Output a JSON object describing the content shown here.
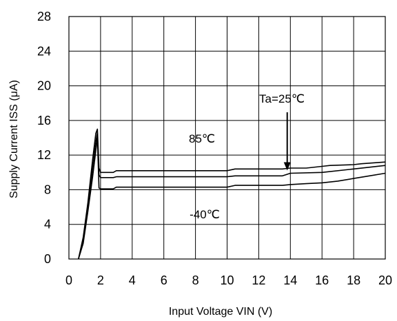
{
  "chart_data": {
    "type": "line",
    "title": "",
    "xlabel": "Input Voltage  VIN  (V)",
    "ylabel": "Supply Current  ISS  (μA)",
    "xlim": [
      0,
      20
    ],
    "ylim": [
      0,
      28
    ],
    "x_ticks": [
      "0",
      "2",
      "4",
      "6",
      "8",
      "10",
      "12",
      "14",
      "16",
      "18",
      "20"
    ],
    "y_ticks": [
      "0",
      "4",
      "8",
      "12",
      "16",
      "20",
      "24",
      "28"
    ],
    "grid": true,
    "annotations": [
      {
        "text": "Ta=25℃",
        "refers_to": "25C",
        "arrow_at": [
          13.8,
          10.3
        ]
      },
      {
        "text": "85℃",
        "refers_to": "85C"
      },
      {
        "text": "-40℃",
        "refers_to": "-40C"
      }
    ],
    "series": [
      {
        "id": "85C",
        "x": [
          0.6,
          0.9,
          1.2,
          1.5,
          1.7,
          1.8,
          1.9,
          2.0,
          2.8,
          3.0,
          5,
          10,
          10.5,
          13.5,
          14,
          15,
          16,
          16.5,
          18,
          18.5,
          20
        ],
        "y": [
          0,
          2.5,
          6.5,
          11.5,
          14.5,
          15.0,
          10.5,
          10.0,
          10.0,
          10.2,
          10.2,
          10.2,
          10.4,
          10.4,
          10.5,
          10.5,
          10.7,
          10.8,
          10.9,
          11.0,
          11.2
        ]
      },
      {
        "id": "25C",
        "x": [
          0.6,
          0.9,
          1.2,
          1.5,
          1.7,
          1.8,
          1.9,
          2.0,
          2.8,
          3.0,
          5,
          10,
          10.5,
          13.5,
          14,
          16,
          18,
          20
        ],
        "y": [
          0,
          2.2,
          6.0,
          10.5,
          13.5,
          14.6,
          9.7,
          9.4,
          9.4,
          9.5,
          9.5,
          9.5,
          9.6,
          9.6,
          9.9,
          10.0,
          10.4,
          10.8
        ]
      },
      {
        "id": "-40C",
        "x": [
          0.6,
          0.9,
          1.2,
          1.5,
          1.7,
          1.8,
          1.9,
          2.0,
          2.8,
          3.0,
          5,
          10,
          10.5,
          13.5,
          14,
          15,
          16,
          17,
          18,
          19,
          20
        ],
        "y": [
          0,
          1.8,
          5.5,
          9.5,
          12.5,
          14.0,
          8.2,
          8.1,
          8.1,
          8.3,
          8.3,
          8.3,
          8.5,
          8.5,
          8.6,
          8.7,
          8.8,
          9.0,
          9.3,
          9.6,
          9.9
        ]
      }
    ]
  }
}
